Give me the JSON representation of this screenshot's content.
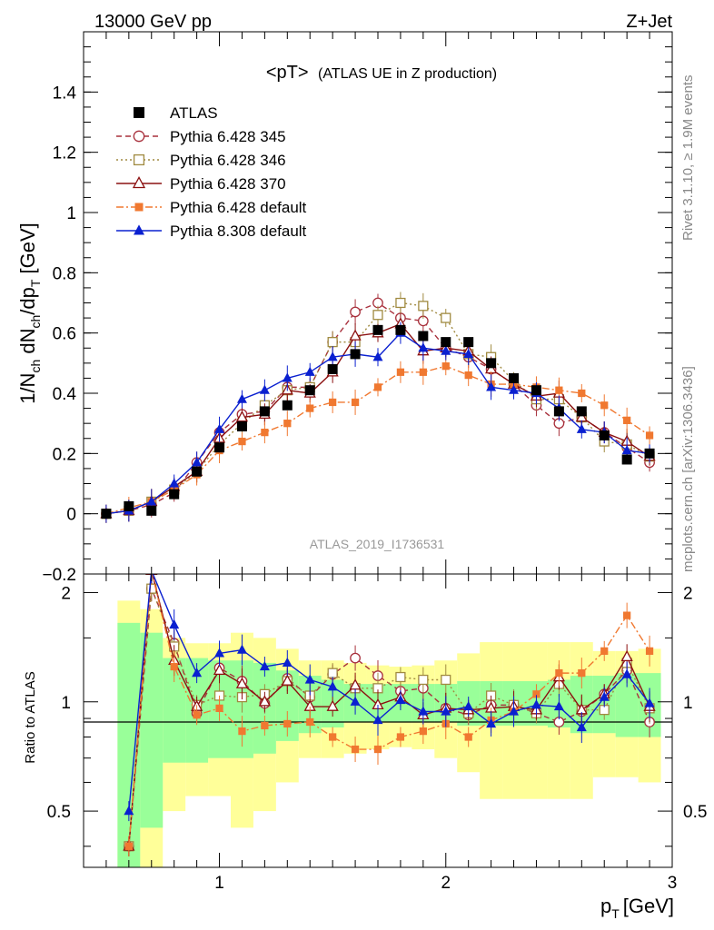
{
  "header": {
    "energy_label": "13000 GeV pp",
    "process_label": "Z+Jet"
  },
  "side_labels": {
    "rivet": "Rivet 3.1.10, ≥ 1.9M events",
    "mcplots": "mcplots.cern.ch [arXiv:1306.3436]"
  },
  "analysis_id": "ATLAS_2019_I1736531",
  "chart_data": [
    {
      "type": "line",
      "title_main": "<pT>",
      "title_sub": "(ATLAS UE in Z production)",
      "xlabel": "p",
      "xlabel_sub": "T",
      "xlabel_unit": "[GeV]",
      "ylabel_parts": [
        "1/N",
        "ch",
        " dN",
        "ch",
        "/dp",
        "T",
        " [GeV]"
      ],
      "xlim": [
        0.4,
        3.0
      ],
      "ylim": [
        -0.2,
        1.6
      ],
      "yticks": [
        -0.2,
        0,
        0.2,
        0.4,
        0.6,
        0.8,
        1,
        1.2,
        1.4
      ],
      "ytick_labels": [
        "−0.2",
        "0",
        "0.2",
        "0.4",
        "0.6",
        "0.8",
        "1",
        "1.2",
        "1.4"
      ],
      "x": [
        0.5,
        0.6,
        0.7,
        0.8,
        0.9,
        1.0,
        1.1,
        1.2,
        1.3,
        1.4,
        1.5,
        1.6,
        1.7,
        1.8,
        1.9,
        2.0,
        2.1,
        2.2,
        2.3,
        2.4,
        2.5,
        2.6,
        2.7,
        2.8,
        2.9
      ],
      "series": [
        {
          "name": "ATLAS",
          "color": "#000000",
          "marker": "square-filled",
          "line": "none",
          "values": [
            0.0,
            0.025,
            0.01,
            0.065,
            0.14,
            0.22,
            0.29,
            0.34,
            0.36,
            0.41,
            0.48,
            0.53,
            0.61,
            0.61,
            0.59,
            0.57,
            0.57,
            0.5,
            0.45,
            0.41,
            0.34,
            0.34,
            0.26,
            0.18,
            0.2
          ]
        },
        {
          "name": "Pythia 6.428 345",
          "color": "#a8303c",
          "marker": "circle-open",
          "line": "dashed",
          "values": [
            0.0,
            0.01,
            0.03,
            0.07,
            0.17,
            0.27,
            0.33,
            0.34,
            0.42,
            0.42,
            0.57,
            0.67,
            0.7,
            0.65,
            0.64,
            0.55,
            0.52,
            0.48,
            0.43,
            0.36,
            0.3,
            0.32,
            0.27,
            0.22,
            0.17
          ]
        },
        {
          "name": "Pythia 6.428 346",
          "color": "#a08a40",
          "marker": "square-open",
          "line": "dotted",
          "values": [
            0.0,
            0.01,
            0.04,
            0.08,
            0.14,
            0.23,
            0.3,
            0.36,
            0.41,
            0.42,
            0.57,
            0.57,
            0.66,
            0.7,
            0.69,
            0.65,
            0.53,
            0.52,
            0.44,
            0.38,
            0.38,
            0.32,
            0.24,
            0.23,
            0.19
          ]
        },
        {
          "name": "Pythia 6.428 370",
          "color": "#8b1010",
          "marker": "triangle-open",
          "line": "solid",
          "values": [
            0.0,
            0.01,
            0.04,
            0.09,
            0.14,
            0.25,
            0.32,
            0.33,
            0.41,
            0.4,
            0.47,
            0.59,
            0.6,
            0.63,
            0.54,
            0.55,
            0.54,
            0.48,
            0.43,
            0.39,
            0.4,
            0.32,
            0.27,
            0.24,
            0.19
          ]
        },
        {
          "name": "Pythia 6.428 default",
          "color": "#f07830",
          "marker": "square-filled-small",
          "line": "dashdot",
          "values": [
            0.0,
            0.02,
            0.04,
            0.08,
            0.13,
            0.21,
            0.24,
            0.27,
            0.3,
            0.35,
            0.37,
            0.37,
            0.42,
            0.47,
            0.47,
            0.49,
            0.46,
            0.43,
            0.43,
            0.42,
            0.41,
            0.4,
            0.36,
            0.31,
            0.26
          ]
        },
        {
          "name": "Pythia 8.308 default",
          "color": "#0a20d0",
          "marker": "triangle-filled",
          "line": "solid",
          "values": [
            0.0,
            0.01,
            0.04,
            0.1,
            0.17,
            0.28,
            0.38,
            0.41,
            0.45,
            0.47,
            0.52,
            0.53,
            0.52,
            0.6,
            0.55,
            0.54,
            0.53,
            0.42,
            0.41,
            0.4,
            0.35,
            0.28,
            0.27,
            0.21,
            0.2
          ]
        }
      ]
    },
    {
      "type": "line",
      "ylabel": "Ratio to ATLAS",
      "xlim": [
        0.4,
        3.0
      ],
      "ylim": [
        0.35,
        2.25
      ],
      "xticks": [
        1,
        2,
        3
      ],
      "xtick_labels": [
        "1",
        "2",
        "3"
      ],
      "yticks": [
        0.5,
        1,
        2
      ],
      "ytick_labels": [
        "0.5",
        "1",
        "2"
      ],
      "x": [
        0.6,
        0.7,
        0.8,
        0.9,
        1.0,
        1.1,
        1.2,
        1.3,
        1.4,
        1.5,
        1.6,
        1.7,
        1.8,
        1.9,
        2.0,
        2.1,
        2.2,
        2.3,
        2.4,
        2.5,
        2.6,
        2.7,
        2.8,
        2.9
      ],
      "bands": {
        "green_half": [
          0.65,
          0.55,
          0.32,
          0.32,
          0.3,
          0.3,
          0.28,
          0.22,
          0.18,
          0.15,
          0.12,
          0.12,
          0.12,
          0.12,
          0.12,
          0.14,
          0.14,
          0.14,
          0.14,
          0.15,
          0.18,
          0.18,
          0.2,
          0.2
        ],
        "yellow_half": [
          0.9,
          0.8,
          0.5,
          0.45,
          0.45,
          0.55,
          0.5,
          0.4,
          0.3,
          0.3,
          0.28,
          0.26,
          0.25,
          0.26,
          0.3,
          0.36,
          0.46,
          0.46,
          0.46,
          0.46,
          0.46,
          0.38,
          0.38,
          0.4
        ]
      },
      "series": [
        {
          "name": "Pythia 6.428 345",
          "values": [
            0.4,
            2.05,
            1.45,
            0.93,
            1.24,
            1.14,
            0.99,
            1.16,
            1.03,
            1.19,
            1.32,
            1.18,
            1.07,
            1.09,
            0.96,
            0.92,
            0.98,
            0.98,
            0.93,
            0.88,
            0.94,
            1.05,
            1.22,
            0.88
          ]
        },
        {
          "name": "Pythia 6.428 346",
          "values": [
            0.4,
            2.05,
            1.42,
            0.98,
            1.04,
            1.03,
            1.05,
            1.14,
            1.04,
            1.2,
            1.09,
            1.09,
            1.17,
            1.15,
            1.15,
            0.93,
            1.04,
            0.98,
            0.93,
            1.12,
            0.95,
            0.95,
            1.28,
            0.96
          ]
        },
        {
          "name": "Pythia 6.428 370",
          "values": [
            0.4,
            2.3,
            1.3,
            0.97,
            1.22,
            1.12,
            1.0,
            1.14,
            0.97,
            0.97,
            1.11,
            0.98,
            1.03,
            0.92,
            0.96,
            0.95,
            0.96,
            0.97,
            0.95,
            1.17,
            0.95,
            1.05,
            1.33,
            0.97
          ]
        },
        {
          "name": "Pythia 6.428 default",
          "values": [
            0.4,
            2.3,
            1.25,
            0.92,
            0.96,
            0.83,
            0.86,
            0.87,
            0.88,
            0.8,
            0.74,
            0.74,
            0.8,
            0.83,
            0.87,
            0.8,
            0.89,
            0.94,
            1.05,
            1.2,
            1.2,
            1.38,
            1.73,
            1.38
          ]
        },
        {
          "name": "Pythia 8.308 default",
          "values": [
            0.5,
            2.3,
            1.63,
            1.2,
            1.36,
            1.39,
            1.25,
            1.28,
            1.15,
            1.1,
            1.0,
            0.89,
            1.01,
            0.94,
            0.94,
            0.97,
            0.87,
            0.94,
            0.98,
            0.97,
            0.85,
            1.03,
            1.19,
            0.99
          ]
        }
      ]
    }
  ]
}
